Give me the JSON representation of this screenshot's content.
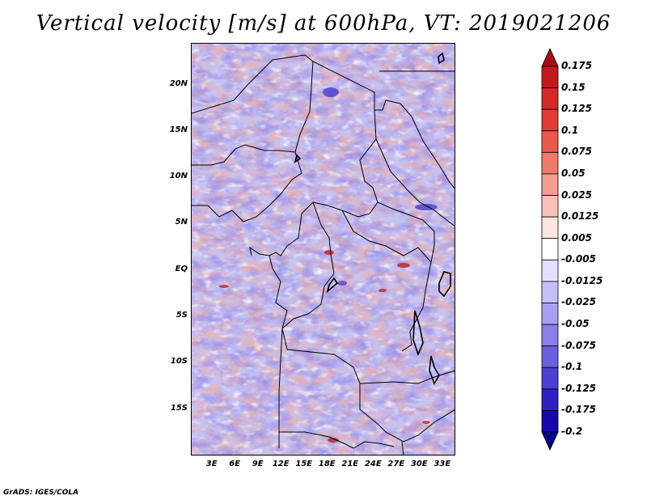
{
  "title": "Vertical velocity [m/s] at 600hPa, VT: 2019021206",
  "credit": "GrADS: IGES/COLA",
  "map": {
    "lat_labels": [
      "20N",
      "15N",
      "10N",
      "5N",
      "EQ",
      "5S",
      "10S",
      "15S"
    ],
    "lat_values": [
      20,
      15,
      10,
      5,
      0,
      -5,
      -10,
      -15
    ],
    "lat_range": [
      -20,
      24.5
    ],
    "lon_labels": [
      "3E",
      "6E",
      "9E",
      "12E",
      "15E",
      "18E",
      "21E",
      "24E",
      "27E",
      "30E",
      "33E"
    ],
    "lon_values": [
      3,
      6,
      9,
      12,
      15,
      18,
      21,
      24,
      27,
      30,
      33
    ],
    "lon_range": [
      0.3,
      34.7
    ]
  },
  "colorbar": {
    "labels": [
      "0.175",
      "0.15",
      "0.125",
      "0.1",
      "0.075",
      "0.05",
      "0.025",
      "0.0125",
      "0.005",
      "-0.005",
      "-0.0125",
      "-0.025",
      "-0.05",
      "-0.075",
      "-0.1",
      "-0.125",
      "-0.175",
      "-0.2"
    ],
    "colors": [
      "#a50f15",
      "#c01a1d",
      "#d32a27",
      "#e03c35",
      "#e85a4f",
      "#ee7a6c",
      "#f39d90",
      "#f8c2b8",
      "#fce6e0",
      "#ffffff",
      "#e2e0fc",
      "#c4c0f6",
      "#a79ff0",
      "#8a80e8",
      "#6c5fde",
      "#4e3fd2",
      "#3020c2",
      "#1808a8",
      "#0a0088"
    ]
  }
}
